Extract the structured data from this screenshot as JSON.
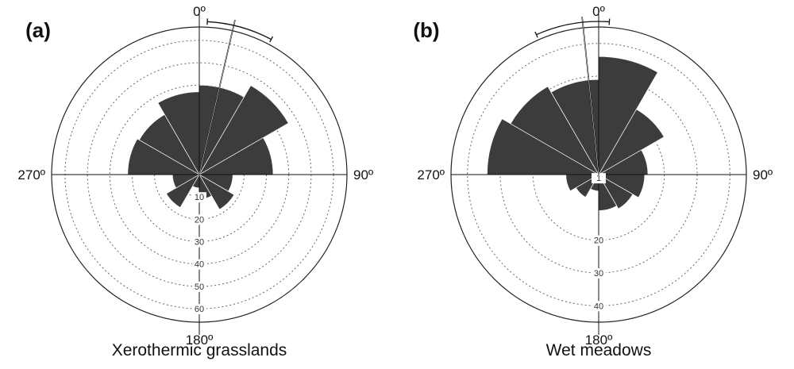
{
  "chart_data": [
    {
      "type": "rose",
      "panel_label": "(a)",
      "caption": "Xerothermic grasslands",
      "direction_labels": [
        "0º",
        "90º",
        "180º",
        "270º"
      ],
      "r_ticks": [
        10,
        20,
        30,
        40,
        50,
        60
      ],
      "rmax": 66,
      "sector_width_deg": 30,
      "sectors": [
        {
          "start_deg": 0,
          "value": 40
        },
        {
          "start_deg": 30,
          "value": 46
        },
        {
          "start_deg": 60,
          "value": 33
        },
        {
          "start_deg": 90,
          "value": 15
        },
        {
          "start_deg": 120,
          "value": 18
        },
        {
          "start_deg": 150,
          "value": 11
        },
        {
          "start_deg": 180,
          "value": 6
        },
        {
          "start_deg": 210,
          "value": 17
        },
        {
          "start_deg": 240,
          "value": 12
        },
        {
          "start_deg": 270,
          "value": 32
        },
        {
          "start_deg": 300,
          "value": 31
        },
        {
          "start_deg": 330,
          "value": 37
        }
      ],
      "mean_direction_deg": 13,
      "mean_range_deg": [
        3,
        28
      ]
    },
    {
      "type": "rose",
      "panel_label": "(b)",
      "caption": "Wet meadows",
      "direction_labels": [
        "0º",
        "90º",
        "180º",
        "270º"
      ],
      "r_ticks": [
        1,
        20,
        30,
        40
      ],
      "rmax": 45,
      "sector_width_deg": 30,
      "sectors": [
        {
          "start_deg": 0,
          "value": 36
        },
        {
          "start_deg": 30,
          "value": 23
        },
        {
          "start_deg": 60,
          "value": 15
        },
        {
          "start_deg": 90,
          "value": 14
        },
        {
          "start_deg": 120,
          "value": 12
        },
        {
          "start_deg": 150,
          "value": 11
        },
        {
          "start_deg": 180,
          "value": 5
        },
        {
          "start_deg": 210,
          "value": 8
        },
        {
          "start_deg": 240,
          "value": 10
        },
        {
          "start_deg": 270,
          "value": 34
        },
        {
          "start_deg": 300,
          "value": 31
        },
        {
          "start_deg": 330,
          "value": 29
        }
      ],
      "mean_direction_deg": 354,
      "mean_range_deg": [
        336,
        4
      ]
    }
  ]
}
